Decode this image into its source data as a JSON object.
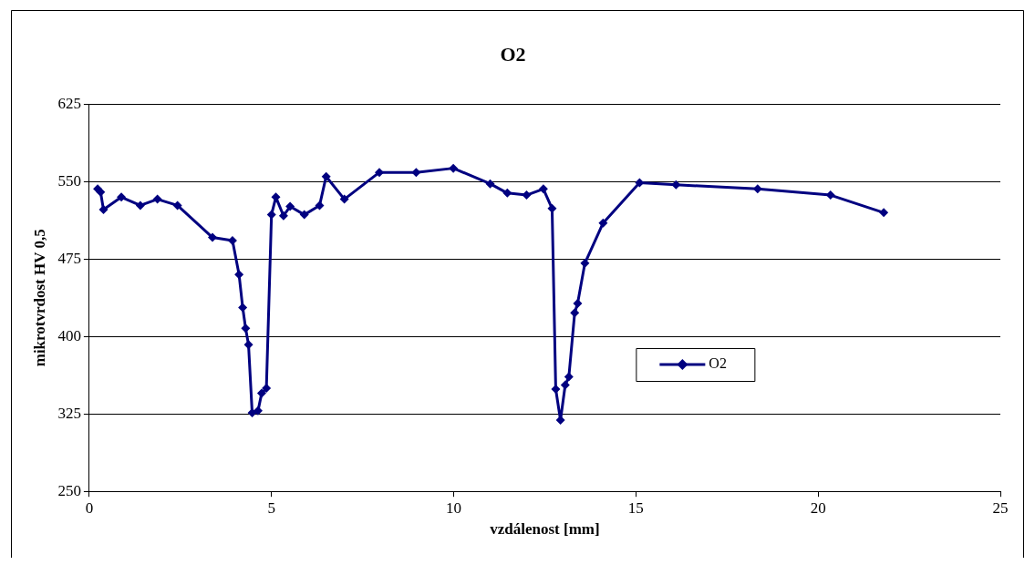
{
  "chart_data": {
    "type": "line",
    "title": "O2",
    "xlabel": "vzdálenost [mm]",
    "ylabel": "mikrotvrdost HV 0,5",
    "xlim": [
      0,
      25
    ],
    "xticks": [
      0,
      5,
      10,
      15,
      20,
      25
    ],
    "ylim": [
      250,
      625
    ],
    "yticks": [
      250,
      325,
      400,
      475,
      550,
      625
    ],
    "grid": "y",
    "legend": "right",
    "marker": "diamond",
    "line_style": "solid",
    "series": [
      {
        "name": "O2",
        "color": "#000080",
        "x": [
          0.23,
          0.31,
          0.39,
          0.88,
          1.4,
          1.87,
          2.42,
          3.38,
          3.93,
          4.11,
          4.21,
          4.29,
          4.37,
          4.47,
          4.63,
          4.73,
          4.86,
          5.0,
          5.12,
          5.33,
          5.51,
          5.9,
          6.32,
          6.5,
          7.0,
          7.96,
          8.97,
          9.99,
          11.0,
          11.47,
          12.0,
          12.46,
          12.7,
          12.8,
          12.93,
          13.06,
          13.16,
          13.32,
          13.4,
          13.6,
          14.1,
          15.1,
          16.1,
          18.34,
          20.34,
          21.8
        ],
        "values": [
          543,
          540,
          523,
          535,
          527,
          533,
          527,
          496,
          493,
          460,
          428,
          408,
          392,
          326,
          328,
          345,
          350,
          518,
          535,
          517,
          526,
          518,
          527,
          555,
          533,
          559,
          559,
          563,
          548,
          539,
          537,
          543,
          524,
          349,
          319,
          353,
          361,
          423,
          432,
          471,
          510,
          549,
          547,
          543,
          537,
          520
        ]
      }
    ]
  }
}
